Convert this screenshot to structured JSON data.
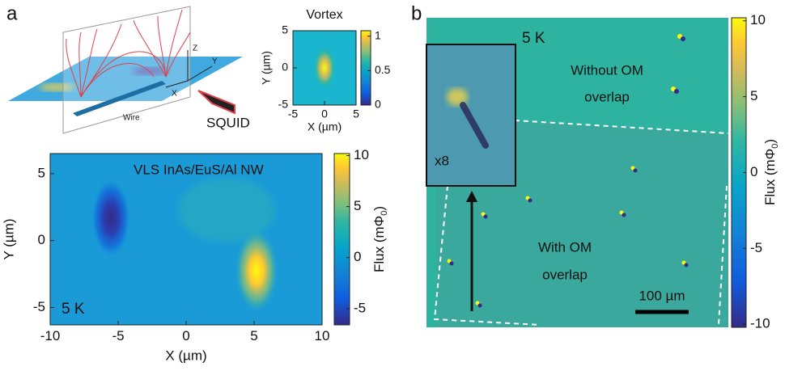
{
  "panels": {
    "a": {
      "label": "a",
      "schematic": {
        "labels": [
          "Z",
          "Y",
          "X",
          "Wire",
          "SQUID"
        ]
      },
      "vortex": {
        "title": "Vortex",
        "x_label": "X (µm)",
        "y_label": "Y (µm)",
        "xlim": [
          -5,
          5
        ],
        "xticks": [
          -5,
          0,
          5
        ],
        "ylim": [
          -5,
          5
        ],
        "yticks": [
          -5,
          0,
          5
        ],
        "colorbar": {
          "lim": [
            0,
            1.08
          ],
          "ticks": [
            0,
            0.5,
            1
          ]
        }
      },
      "map": {
        "annotation": "VLS InAs/EuS/Al NW",
        "temperature": "5 K",
        "x_label": "X (µm)",
        "y_label": "Y (µm)",
        "xlim": [
          -10,
          10
        ],
        "xticks": [
          -10,
          -5,
          0,
          5,
          10
        ],
        "ylim": [
          -6.3,
          6.5
        ],
        "yticks": [
          -5,
          0,
          5
        ],
        "colorbar": {
          "label_main": "Flux (mΦ",
          "label_sub": "0",
          "label_end": ")",
          "lim": [
            -6.6,
            10.2
          ],
          "ticks": [
            -5,
            0,
            5,
            10
          ]
        }
      }
    },
    "b": {
      "label": "b",
      "temperature": "5 K",
      "without": [
        "Without OM",
        "overlap"
      ],
      "with": [
        "With OM",
        "overlap"
      ],
      "zoom": "x8",
      "scale_bar": "100 µm",
      "colorbar": {
        "label_main": "Flux (mΦ",
        "label_sub": "0",
        "label_end": ")",
        "lim": [
          -10.2,
          10.2
        ],
        "ticks": [
          -10,
          -5,
          0,
          5,
          10
        ]
      }
    }
  }
}
